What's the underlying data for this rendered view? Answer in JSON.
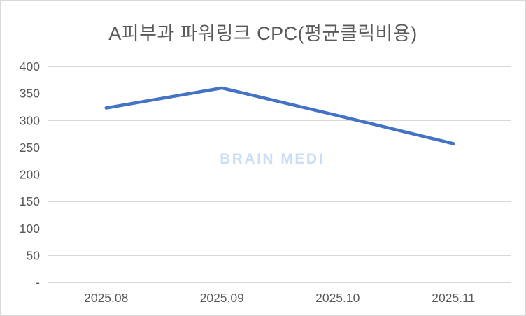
{
  "window": {
    "background": "#ffffff",
    "border_color": "#d9d9d9"
  },
  "chart_data": {
    "type": "line",
    "title": "A피부과 파워링크 CPC(평균클릭비용)",
    "categories": [
      "2025.08",
      "2025.09",
      "2025.10",
      "2025.11"
    ],
    "series": [
      {
        "name": "CPC",
        "values": [
          323,
          360,
          309,
          257
        ]
      }
    ],
    "ylim": [
      0,
      400
    ],
    "ytick_values": [
      400,
      350,
      300,
      250,
      200,
      150,
      100,
      50,
      0
    ],
    "ytick_labels": [
      "400",
      "350",
      "300",
      "250",
      "200",
      "150",
      "100",
      "50",
      "-"
    ],
    "xlabel": "",
    "ylabel": "",
    "grid": "horizontal",
    "legend_position": "none",
    "line_color": "#4472c4",
    "grid_color": "#d9d9d9",
    "axis_label_color": "#595959",
    "title_color": "#595959"
  },
  "watermark": {
    "text": "BRAIN MEDI",
    "color": "#cbdef6"
  }
}
